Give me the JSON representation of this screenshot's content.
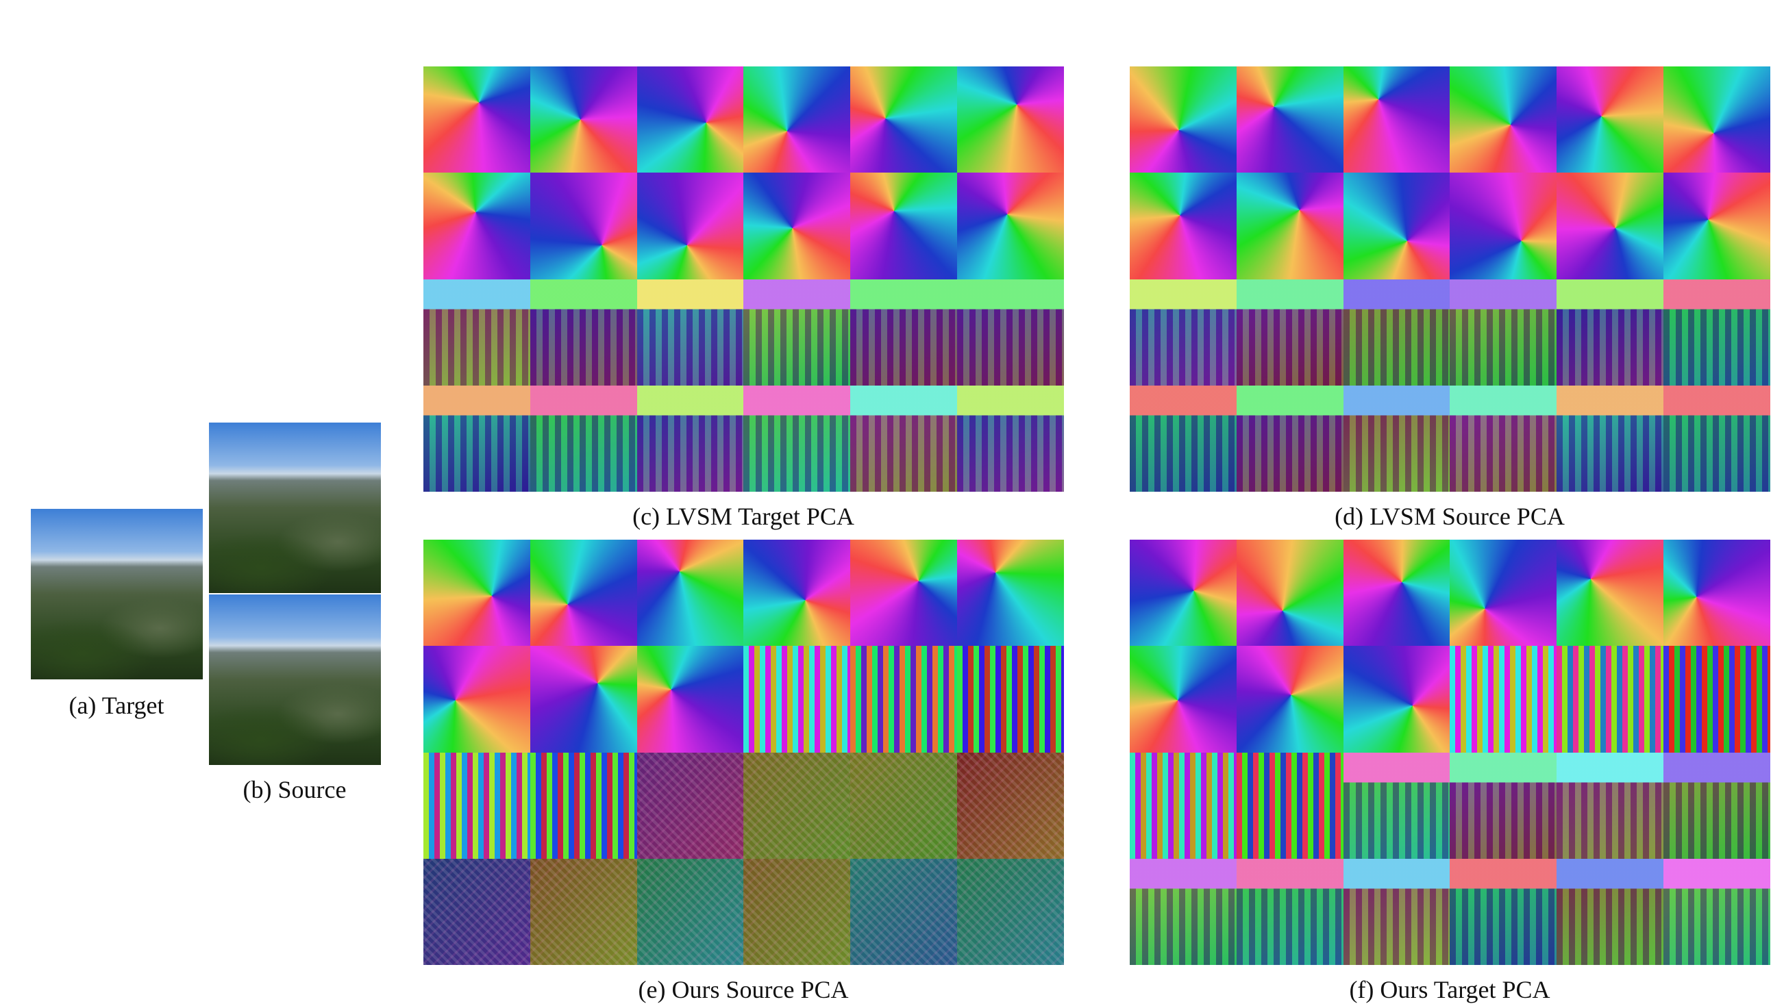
{
  "target": {
    "caption": "(a) Target"
  },
  "source": {
    "caption": "(b) Source"
  },
  "grids": [
    {
      "caption": "(c) LVSM Target PCA"
    },
    {
      "caption": "(d) LVSM Source PCA"
    },
    {
      "caption": "(e) Ours Source PCA"
    },
    {
      "caption": "(f) Ours Target PCA"
    }
  ]
}
